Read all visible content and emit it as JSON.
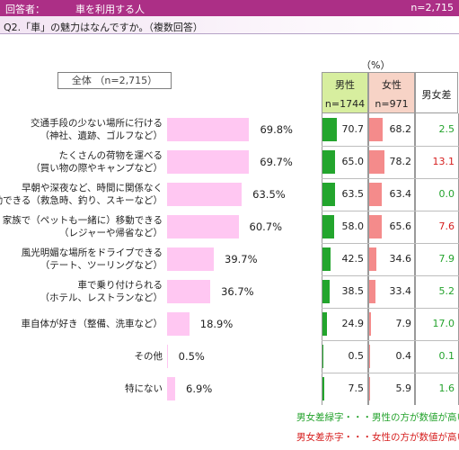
{
  "header": {
    "respondents_label": "回答者：",
    "respondents_value": "車を利用する人",
    "n": "n=2,715",
    "bg_color": "#ac2f86"
  },
  "question": "Q2.「車」の魅力はなんですか。（複数回答）",
  "unit": "（%）",
  "total_label": "全体 （n=2,715）",
  "columns": {
    "male": {
      "label": "男性",
      "n": "n=1744"
    },
    "female": {
      "label": "女性",
      "n": "n=971"
    },
    "diff": {
      "label": "男女差"
    }
  },
  "notes": {
    "green": "男女差緑字・・・男性の方が数値が高い",
    "red": "男女差赤字・・・女性の方が数値が高い"
  },
  "chart_data": {
    "type": "bar",
    "title": "",
    "xlim": [
      0,
      100
    ],
    "categories": [
      "交通手段の少ない場所に行ける\n（神社、遺跡、ゴルフなど）",
      "たくさんの荷物を運べる\n（買い物の際やキャンプなど）",
      "早朝や深夜など、時間に関係なく\n移動できる（救急時、釣り、スキーなど）",
      "家族で（ペットも一緒に）移動できる\n（レジャーや帰省など）",
      "風光明媚な場所をドライブできる\n（テート、ツーリングなど）",
      "車で乗り付けられる\n（ホテル、レストランなど）",
      "車自体が好き（整備、洗車など）",
      "その他",
      "特にない"
    ],
    "series": [
      {
        "name": "全体",
        "values": [
          69.8,
          69.7,
          63.5,
          60.7,
          39.7,
          36.7,
          18.9,
          0.5,
          6.9
        ],
        "labels": [
          "69.8%",
          "69.7%",
          "63.5%",
          "60.7%",
          "39.7%",
          "36.7%",
          "18.9%",
          "0.5%",
          "6.9%"
        ],
        "color": "#ffc7f2"
      },
      {
        "name": "男性",
        "values": [
          70.7,
          65.0,
          63.5,
          58.0,
          42.5,
          38.5,
          24.9,
          0.5,
          7.5
        ],
        "labels": [
          "70.7",
          "65.0",
          "63.5",
          "58.0",
          "42.5",
          "38.5",
          "24.9",
          "0.5",
          "7.5"
        ],
        "color": "#23a52d"
      },
      {
        "name": "女性",
        "values": [
          68.2,
          78.2,
          63.4,
          65.6,
          34.6,
          33.4,
          7.9,
          0.4,
          5.9
        ],
        "labels": [
          "68.2",
          "78.2",
          "63.4",
          "65.6",
          "34.6",
          "33.4",
          "7.9",
          "0.4",
          "5.9"
        ],
        "color": "#f48b8b"
      },
      {
        "name": "男女差",
        "values": [
          2.5,
          13.1,
          0.0,
          7.6,
          7.9,
          5.2,
          17.0,
          0.1,
          1.6
        ],
        "labels": [
          "2.5",
          "13.1",
          "0.0",
          "7.6",
          "7.9",
          "5.2",
          "17.0",
          "0.1",
          "1.6"
        ],
        "colors": [
          "green",
          "red",
          "green",
          "red",
          "green",
          "green",
          "green",
          "green",
          "green"
        ]
      }
    ]
  }
}
